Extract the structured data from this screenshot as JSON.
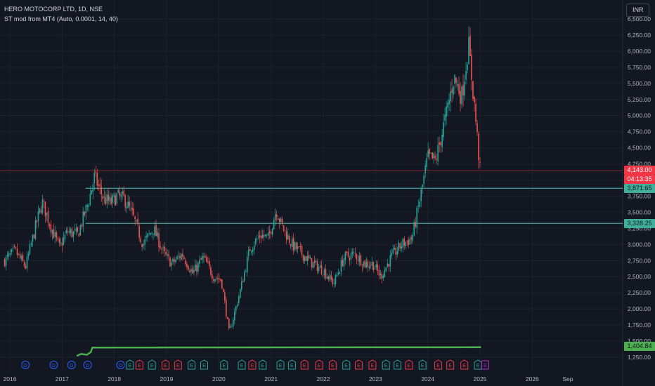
{
  "legend": {
    "symbol_line": "HERO MOTOCORP LTD, 1D, NSE",
    "indicator_line": "ST mod from MT4 (Auto, 0.0001, 14, 40)"
  },
  "currency_button": "INR",
  "price_labels": {
    "last_price": "4,143.00",
    "countdown": "04:13:35",
    "level_upper": "3,871.65",
    "level_lower": "3,328.25",
    "indicator_value": "1,404.84"
  },
  "colors": {
    "background": "#131722",
    "up": "#26a69a",
    "down": "#ef5350",
    "level_line": "#4fc3b4",
    "last_price_line": "#f23645",
    "indicator": "#4caf50",
    "dividend": "#2962ff",
    "earnings_neg": "#f23645",
    "earnings_pos": "#26a69a",
    "earnings_future": "#9c27b0"
  },
  "chart_data": {
    "type": "candlestick",
    "title": "HERO MOTOCORP LTD, 1D, NSE",
    "xlabel": "",
    "ylabel": "",
    "x_ticks": [
      "2016",
      "2017",
      "2018",
      "2019",
      "2020",
      "2021",
      "2022",
      "2023",
      "2024",
      "2025",
      "2026",
      "Sep"
    ],
    "y_ticks": [
      "6,500.00",
      "6,250.00",
      "6,000.00",
      "5,750.00",
      "5,500.00",
      "5,250.00",
      "5,000.00",
      "4,750.00",
      "4,500.00",
      "4,250.00",
      "4,000.00",
      "3,750.00",
      "3,500.00",
      "3,250.00",
      "3,000.00",
      "2,750.00",
      "2,500.00",
      "2,250.00",
      "2,000.00",
      "1,750.00",
      "1,500.00",
      "1,250.00"
    ],
    "ylim": [
      1200,
      6600
    ],
    "xlim": [
      2015.9,
      2026.85
    ],
    "grid": true,
    "price_path": [
      [
        2015.9,
        2750
      ],
      [
        2016.1,
        2900
      ],
      [
        2016.3,
        2650
      ],
      [
        2016.5,
        3300
      ],
      [
        2016.62,
        3650
      ],
      [
        2016.8,
        3250
      ],
      [
        2016.95,
        2950
      ],
      [
        2017.1,
        3200
      ],
      [
        2017.3,
        3150
      ],
      [
        2017.5,
        3650
      ],
      [
        2017.62,
        4050
      ],
      [
        2017.8,
        3700
      ],
      [
        2017.95,
        3650
      ],
      [
        2018.05,
        3750
      ],
      [
        2018.2,
        3700
      ],
      [
        2018.35,
        3450
      ],
      [
        2018.55,
        3000
      ],
      [
        2018.75,
        3250
      ],
      [
        2018.95,
        2850
      ],
      [
        2019.1,
        2700
      ],
      [
        2019.3,
        2850
      ],
      [
        2019.5,
        2550
      ],
      [
        2019.7,
        2800
      ],
      [
        2019.9,
        2500
      ],
      [
        2020.05,
        2450
      ],
      [
        2020.2,
        1620
      ],
      [
        2020.4,
        2250
      ],
      [
        2020.6,
        2950
      ],
      [
        2020.8,
        3150
      ],
      [
        2020.95,
        3100
      ],
      [
        2021.1,
        3550
      ],
      [
        2021.2,
        3300
      ],
      [
        2021.4,
        3000
      ],
      [
        2021.6,
        2850
      ],
      [
        2021.8,
        2700
      ],
      [
        2022.0,
        2600
      ],
      [
        2022.2,
        2400
      ],
      [
        2022.4,
        2800
      ],
      [
        2022.6,
        2850
      ],
      [
        2022.8,
        2700
      ],
      [
        2022.95,
        2700
      ],
      [
        2023.1,
        2500
      ],
      [
        2023.3,
        2800
      ],
      [
        2023.5,
        3000
      ],
      [
        2023.7,
        3100
      ],
      [
        2023.85,
        3700
      ],
      [
        2024.0,
        4350
      ],
      [
        2024.15,
        4300
      ],
      [
        2024.35,
        5000
      ],
      [
        2024.5,
        5600
      ],
      [
        2024.65,
        5300
      ],
      [
        2024.78,
        6100
      ],
      [
        2024.9,
        5100
      ],
      [
        2025.0,
        4143
      ]
    ],
    "horizontal_levels": [
      {
        "price": 3871.65,
        "from_x": 2017.45
      },
      {
        "price": 3328.25,
        "from_x": 2017.45
      }
    ],
    "last_price": 4143.0,
    "indicator_series": {
      "name": "ST mod from MT4 (Auto, 0.0001, 14, 40)",
      "points": [
        [
          2017.28,
          1270
        ],
        [
          2017.36,
          1300
        ],
        [
          2017.48,
          1290
        ],
        [
          2017.55,
          1330
        ],
        [
          2017.58,
          1400
        ],
        [
          2025.02,
          1404.84
        ]
      ],
      "last": 1404.84
    },
    "events": [
      {
        "x": 2016.3,
        "label": "D",
        "kind": "dividend"
      },
      {
        "x": 2016.84,
        "label": "D",
        "kind": "dividend"
      },
      {
        "x": 2017.18,
        "label": "D",
        "kind": "dividend"
      },
      {
        "x": 2017.49,
        "label": "D",
        "kind": "dividend"
      },
      {
        "x": 2018.12,
        "label": "D",
        "kind": "dividend"
      },
      {
        "x": 2018.3,
        "label": "E",
        "kind": "earnings_pos"
      },
      {
        "x": 2018.48,
        "label": "E",
        "kind": "earnings_neg"
      },
      {
        "x": 2018.72,
        "label": "E",
        "kind": "earnings_pos"
      },
      {
        "x": 2018.98,
        "label": "E",
        "kind": "earnings_neg"
      },
      {
        "x": 2019.22,
        "label": "E",
        "kind": "earnings_neg"
      },
      {
        "x": 2019.48,
        "label": "E",
        "kind": "earnings_pos"
      },
      {
        "x": 2019.72,
        "label": "E",
        "kind": "earnings_pos"
      },
      {
        "x": 2020.1,
        "label": "E",
        "kind": "earnings_pos"
      },
      {
        "x": 2020.44,
        "label": "E",
        "kind": "earnings_pos"
      },
      {
        "x": 2020.64,
        "label": "E",
        "kind": "earnings_neg"
      },
      {
        "x": 2020.84,
        "label": "E",
        "kind": "earnings_pos"
      },
      {
        "x": 2021.18,
        "label": "E",
        "kind": "earnings_pos"
      },
      {
        "x": 2021.4,
        "label": "E",
        "kind": "earnings_pos"
      },
      {
        "x": 2021.64,
        "label": "E",
        "kind": "earnings_neg"
      },
      {
        "x": 2021.92,
        "label": "E",
        "kind": "earnings_neg"
      },
      {
        "x": 2022.18,
        "label": "E",
        "kind": "earnings_neg"
      },
      {
        "x": 2022.44,
        "label": "E",
        "kind": "earnings_pos"
      },
      {
        "x": 2022.68,
        "label": "E",
        "kind": "earnings_neg"
      },
      {
        "x": 2022.94,
        "label": "E",
        "kind": "earnings_neg"
      },
      {
        "x": 2023.2,
        "label": "E",
        "kind": "earnings_pos"
      },
      {
        "x": 2023.42,
        "label": "E",
        "kind": "earnings_pos"
      },
      {
        "x": 2023.64,
        "label": "E",
        "kind": "earnings_neg"
      },
      {
        "x": 2023.9,
        "label": "E",
        "kind": "earnings_pos"
      },
      {
        "x": 2024.2,
        "label": "E",
        "kind": "earnings_neg"
      },
      {
        "x": 2024.43,
        "label": "E",
        "kind": "earnings_neg"
      },
      {
        "x": 2024.7,
        "label": "E",
        "kind": "earnings_neg"
      },
      {
        "x": 2024.96,
        "label": "E",
        "kind": "earnings_pos"
      },
      {
        "x": 2025.1,
        "label": "E",
        "kind": "earnings_future"
      }
    ]
  }
}
